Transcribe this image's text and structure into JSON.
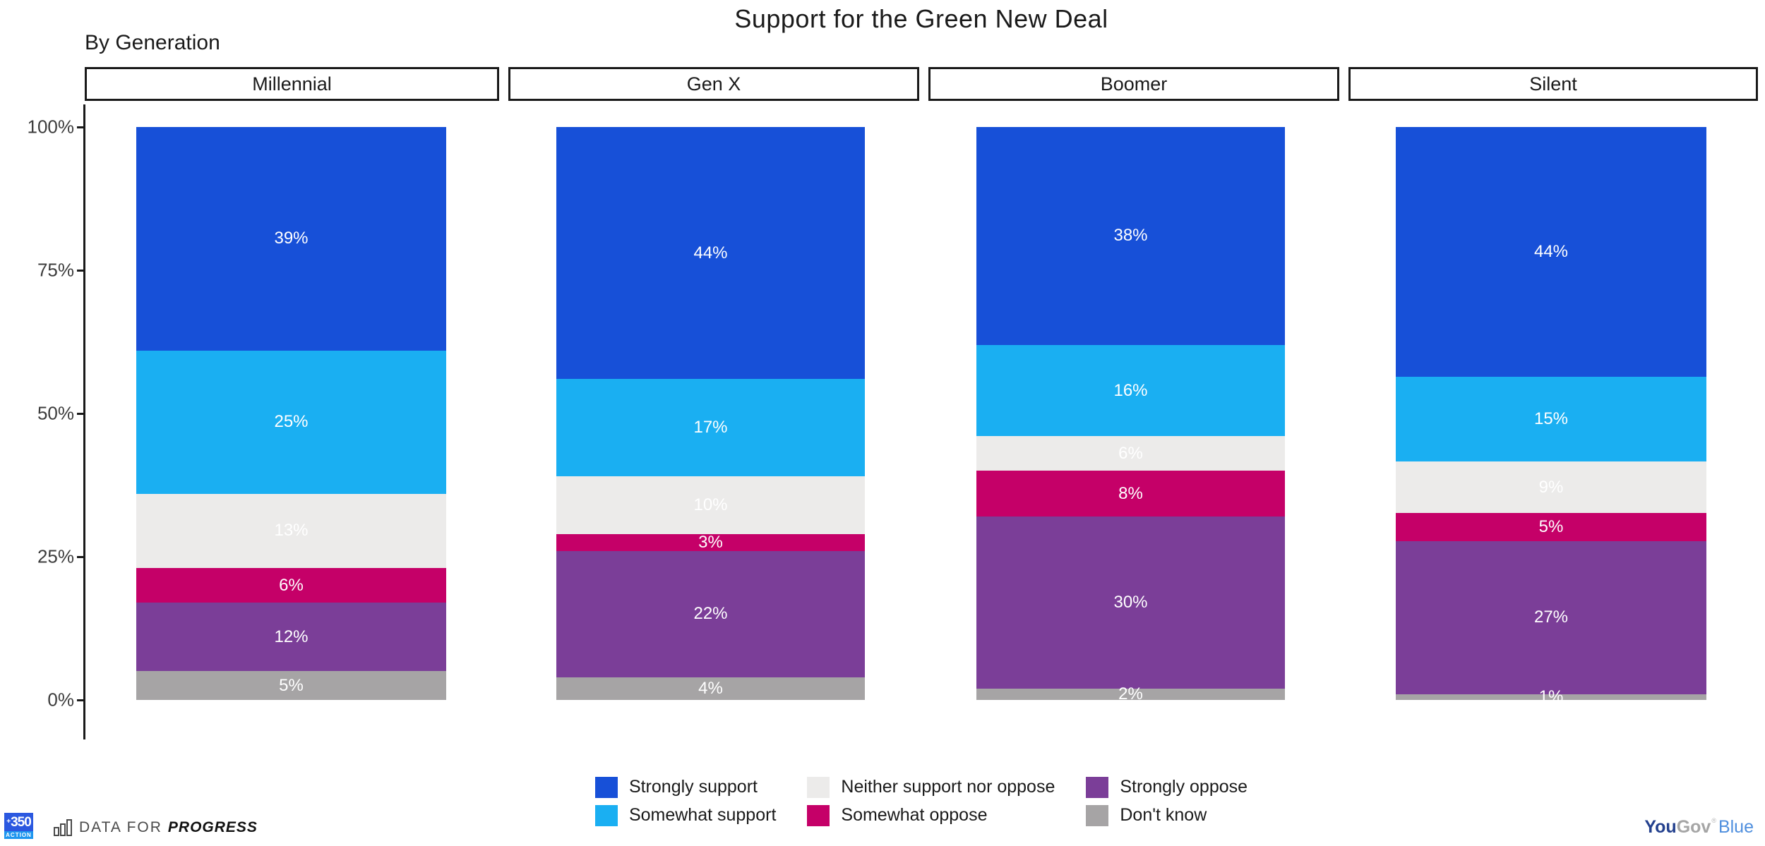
{
  "title": "Support for the Green New Deal",
  "subtitle": "By Generation",
  "chart_data": {
    "type": "bar",
    "stacked": true,
    "orientation": "vertical",
    "unit": "%",
    "title": "Support for the Green New Deal",
    "subtitle": "By Generation",
    "xlabel": "",
    "ylabel": "",
    "ylim": [
      0,
      100
    ],
    "grid": false,
    "legend_position": "bottom",
    "categories": [
      "Millennial",
      "Gen X",
      "Boomer",
      "Silent"
    ],
    "y_ticks": [
      {
        "label": "100%",
        "value": 100
      },
      {
        "label": "75%",
        "value": 75
      },
      {
        "label": "50%",
        "value": 50
      },
      {
        "label": "25%",
        "value": 25
      },
      {
        "label": "0%",
        "value": 0
      }
    ],
    "series": [
      {
        "name": "Strongly support",
        "color": "#1750d8",
        "values": [
          39,
          44,
          38,
          44
        ]
      },
      {
        "name": "Somewhat support",
        "color": "#1aaff2",
        "values": [
          25,
          17,
          16,
          15
        ]
      },
      {
        "name": "Neither support nor oppose",
        "color": "#ecebea",
        "values": [
          13,
          10,
          6,
          9
        ]
      },
      {
        "name": "Somewhat oppose",
        "color": "#c50068",
        "values": [
          6,
          3,
          8,
          5
        ]
      },
      {
        "name": "Strongly oppose",
        "color": "#7b3e98",
        "values": [
          12,
          22,
          30,
          27
        ]
      },
      {
        "name": "Don't know",
        "color": "#a6a4a5",
        "values": [
          5,
          4,
          2,
          1
        ]
      }
    ],
    "value_label_suffix": "%"
  },
  "footer": {
    "logo_350": {
      "plus": "+",
      "number": "350",
      "sub": "ACTION"
    },
    "dfp_prefix": "DATA FOR",
    "dfp_suffix": "PROGRESS",
    "yougov": {
      "part1": "You",
      "part2": "Gov",
      "reg": "®",
      "part3": "Blue"
    }
  }
}
